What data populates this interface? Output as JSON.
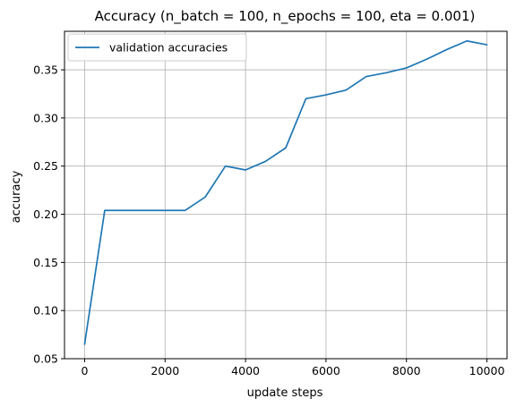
{
  "chart_data": {
    "type": "line",
    "title": "Accuracy (n_batch = 100, n_epochs = 100, eta = 0.001)",
    "xlabel": "update steps",
    "ylabel": "accuracy",
    "xlim": [
      -500,
      10500
    ],
    "ylim": [
      0.05,
      0.39
    ],
    "xticks": [
      0,
      2000,
      4000,
      6000,
      8000,
      10000
    ],
    "yticks": [
      0.05,
      0.1,
      0.15,
      0.2,
      0.25,
      0.3,
      0.35
    ],
    "xtick_labels": [
      "0",
      "2000",
      "4000",
      "6000",
      "8000",
      "10000"
    ],
    "ytick_labels": [
      "0.05",
      "0.10",
      "0.15",
      "0.20",
      "0.25",
      "0.30",
      "0.35"
    ],
    "grid": true,
    "legend_position": "top-left",
    "series": [
      {
        "name": "validation accuracies",
        "color": "#1f77b4",
        "x": [
          0,
          500,
          1000,
          1500,
          2000,
          2500,
          3000,
          3500,
          4000,
          4500,
          5000,
          5500,
          6000,
          6500,
          7000,
          7500,
          8000,
          8500,
          9000,
          9500,
          10000
        ],
        "y": [
          0.065,
          0.204,
          0.204,
          0.204,
          0.204,
          0.204,
          0.218,
          0.25,
          0.246,
          0.255,
          0.269,
          0.32,
          0.324,
          0.329,
          0.343,
          0.347,
          0.352,
          0.361,
          0.371,
          0.38,
          0.376
        ]
      }
    ]
  }
}
